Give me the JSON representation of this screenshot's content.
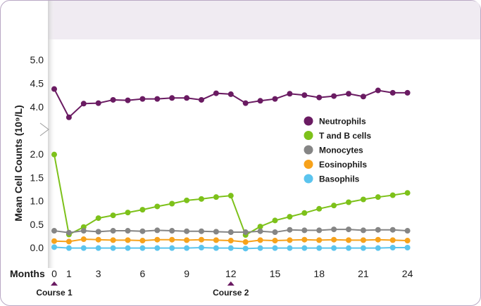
{
  "chart_data": {
    "type": "line",
    "ylabel": "Mean Cell Counts (10⁹/L)",
    "xlabel": "Months",
    "x": [
      0,
      1,
      2,
      3,
      4,
      5,
      6,
      7,
      8,
      9,
      10,
      11,
      12,
      13,
      14,
      15,
      16,
      17,
      18,
      19,
      20,
      21,
      22,
      23,
      24
    ],
    "x_ticks": [
      0,
      1,
      3,
      6,
      9,
      12,
      15,
      18,
      21,
      24
    ],
    "y_ticks_lower": [
      0.0,
      0.5,
      1.0,
      1.5,
      2.0
    ],
    "y_ticks_upper": [
      4.0,
      4.5,
      5.0
    ],
    "y_ticks_lower_labels": [
      "0.0",
      "0.5",
      "1.0",
      "1.5",
      "2.0"
    ],
    "y_ticks_upper_labels": [
      "4.0",
      "4.5",
      "5.0"
    ],
    "ylim": [
      0,
      5.0
    ],
    "axis_break": [
      2.0,
      4.0
    ],
    "grid": false,
    "legend_position": "right-center",
    "annotations": [
      {
        "label": "Course 1",
        "x": 0
      },
      {
        "label": "Course 2",
        "x": 12
      }
    ],
    "series": [
      {
        "name": "Neutrophils",
        "color": "#6a1b62",
        "values": [
          4.38,
          3.78,
          4.07,
          4.08,
          4.15,
          4.14,
          4.17,
          4.17,
          4.19,
          4.19,
          4.15,
          4.29,
          4.27,
          4.08,
          4.13,
          4.17,
          4.28,
          4.25,
          4.2,
          4.23,
          4.28,
          4.22,
          4.35,
          4.3,
          4.3
        ]
      },
      {
        "name": "T and B cells",
        "color": "#7dc11a",
        "values": [
          1.99,
          0.28,
          0.44,
          0.63,
          0.69,
          0.75,
          0.81,
          0.88,
          0.94,
          1.01,
          1.04,
          1.08,
          1.11,
          0.27,
          0.45,
          0.58,
          0.66,
          0.74,
          0.83,
          0.9,
          0.97,
          1.03,
          1.08,
          1.12,
          1.17
        ]
      },
      {
        "name": "Monocytes",
        "color": "#858585",
        "values": [
          0.36,
          0.32,
          0.36,
          0.34,
          0.36,
          0.36,
          0.35,
          0.37,
          0.36,
          0.35,
          0.35,
          0.34,
          0.33,
          0.33,
          0.35,
          0.33,
          0.38,
          0.37,
          0.37,
          0.39,
          0.39,
          0.37,
          0.38,
          0.38,
          0.36
        ]
      },
      {
        "name": "Eosinophils",
        "color": "#f7a21b",
        "values": [
          0.14,
          0.13,
          0.18,
          0.17,
          0.16,
          0.16,
          0.15,
          0.17,
          0.17,
          0.16,
          0.17,
          0.16,
          0.15,
          0.12,
          0.16,
          0.15,
          0.16,
          0.17,
          0.16,
          0.17,
          0.16,
          0.16,
          0.17,
          0.16,
          0.15
        ]
      },
      {
        "name": "Basophils",
        "color": "#5bc4ee",
        "values": [
          0.01,
          -0.01,
          -0.01,
          -0.01,
          -0.01,
          -0.01,
          -0.01,
          -0.01,
          -0.01,
          -0.01,
          0.0,
          -0.01,
          -0.01,
          -0.02,
          -0.01,
          -0.01,
          -0.01,
          -0.01,
          -0.01,
          -0.01,
          -0.01,
          -0.01,
          -0.01,
          0.0,
          0.0
        ]
      }
    ]
  }
}
